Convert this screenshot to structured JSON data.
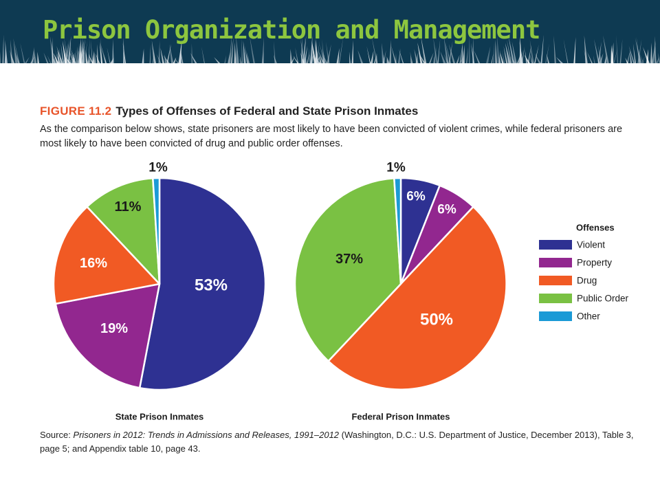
{
  "header": {
    "title": "Prison Organization and Management",
    "colors": {
      "banner_bg": "#0e3a52",
      "title": "#8dc63f"
    }
  },
  "figure": {
    "number": "FIGURE 11.2",
    "title": "Types of Offenses of Federal and State Prison Inmates",
    "caption": "As the comparison below shows, state prisoners are most likely to have been convicted of violent crimes, while federal prisoners are most likely to have been convicted of drug and public order offenses."
  },
  "source": {
    "prefix": "Source: ",
    "title": "Prisoners in 2012: Trends in Admissions and Releases, 1991–2012",
    "rest": " (Washington, D.C.: U.S. Department of Justice, December 2013), Table 3, page 5; and Appendix table 10, page 43."
  },
  "chart_data": [
    {
      "type": "pie",
      "xlabel": "State Prison Inmates",
      "legend_position": "right",
      "slices": [
        {
          "label": "Violent",
          "value": 53,
          "display": "53%",
          "color": "#2e3192"
        },
        {
          "label": "Property",
          "value": 19,
          "display": "19%",
          "color": "#92278f"
        },
        {
          "label": "Drug",
          "value": 16,
          "display": "16%",
          "color": "#f15a24"
        },
        {
          "label": "Public Order",
          "value": 11,
          "display": "11%",
          "color": "#7ac143"
        },
        {
          "label": "Other",
          "value": 1,
          "display": "1%",
          "color": "#1b9ad6"
        }
      ]
    },
    {
      "type": "pie",
      "xlabel": "Federal Prison Inmates",
      "legend_position": "right",
      "slices": [
        {
          "label": "Violent",
          "value": 6,
          "display": "6%",
          "color": "#2e3192"
        },
        {
          "label": "Property",
          "value": 6,
          "display": "6%",
          "color": "#92278f"
        },
        {
          "label": "Drug",
          "value": 50,
          "display": "50%",
          "color": "#f15a24"
        },
        {
          "label": "Public Order",
          "value": 37,
          "display": "37%",
          "color": "#7ac143"
        },
        {
          "label": "Other",
          "value": 1,
          "display": "1%",
          "color": "#1b9ad6"
        }
      ]
    }
  ],
  "legend": {
    "title": "Offenses",
    "items": [
      {
        "label": "Violent",
        "color": "#2e3192"
      },
      {
        "label": "Property",
        "color": "#92278f"
      },
      {
        "label": "Drug",
        "color": "#f15a24"
      },
      {
        "label": "Public Order",
        "color": "#7ac143"
      },
      {
        "label": "Other",
        "color": "#1b9ad6"
      }
    ]
  }
}
